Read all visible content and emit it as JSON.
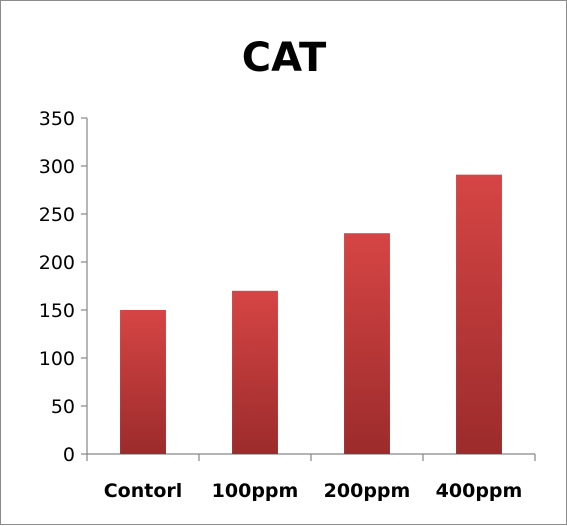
{
  "chart_data": {
    "type": "bar",
    "title": "CAT",
    "categories": [
      "Contorl",
      "100ppm",
      "200ppm",
      "400ppm"
    ],
    "values": [
      150,
      170,
      230,
      291
    ],
    "xlabel": "",
    "ylabel": "",
    "ylim": [
      0,
      350
    ],
    "yticks": [
      0,
      50,
      100,
      150,
      200,
      250,
      300,
      350
    ],
    "grid": false,
    "legend": "none",
    "bar_color_light": "#d64545",
    "bar_color_dark": "#9c2b2b",
    "axis_color": "#868686"
  }
}
